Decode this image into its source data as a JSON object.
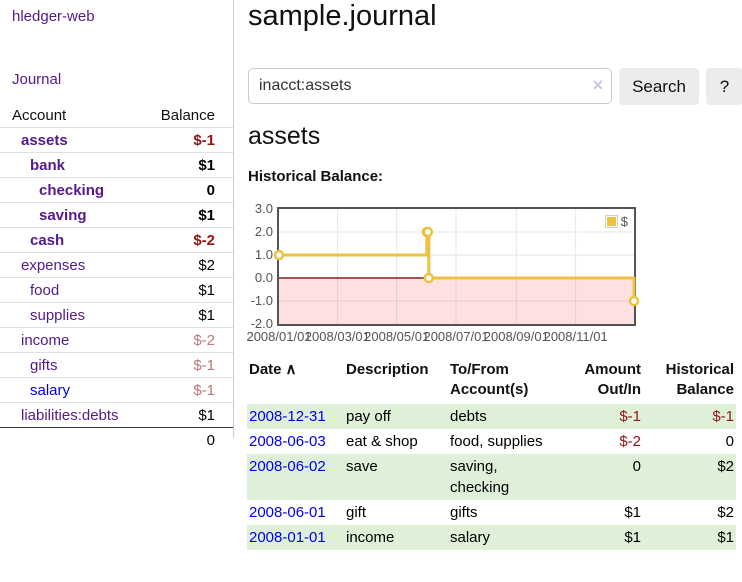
{
  "app": {
    "brand": "hledger-web",
    "nav_journal": "Journal"
  },
  "colors": {
    "link_purple": "#551a8b",
    "link_blue": "#0000ee",
    "negative": "#941414",
    "negative_dim": "#c17777",
    "row_green": "#dff0d8",
    "series_yellow": "#edc240",
    "axis_gray": "#545454",
    "negative_zone_line": "#8b1a1a"
  },
  "sidebar": {
    "header": {
      "account": "Account",
      "balance": "Balance"
    },
    "accounts": [
      {
        "name": "assets",
        "depth": 1,
        "balance": "$-1",
        "selected": true,
        "neg": "strong"
      },
      {
        "name": "bank",
        "depth": 2,
        "balance": "$1",
        "selected": true
      },
      {
        "name": "checking",
        "depth": 3,
        "balance": "0",
        "selected": true
      },
      {
        "name": "saving",
        "depth": 3,
        "balance": "$1",
        "selected": true
      },
      {
        "name": "cash",
        "depth": 2,
        "balance": "$-2",
        "selected": true,
        "neg": "strong"
      },
      {
        "name": "expenses",
        "depth": 1,
        "balance": "$2"
      },
      {
        "name": "food",
        "depth": 2,
        "balance": "$1"
      },
      {
        "name": "supplies",
        "depth": 2,
        "balance": "$1"
      },
      {
        "name": "income",
        "depth": 1,
        "balance": "$-2",
        "neg": "dim"
      },
      {
        "name": "gifts",
        "depth": 2,
        "balance": "$-1",
        "neg": "dim"
      },
      {
        "name": "salary",
        "depth": 2,
        "balance": "$-1",
        "neg": "dim",
        "link_color": "blue"
      },
      {
        "name": "liabilities:debts",
        "depth": 1,
        "balance": "$1"
      }
    ],
    "total": "0"
  },
  "header": {
    "title": "sample.journal"
  },
  "search": {
    "value": "inacct:assets",
    "clear_icon": "×",
    "button": "Search",
    "help_button": "?"
  },
  "account_page": {
    "heading": "assets",
    "chart_label": "Historical Balance:"
  },
  "chart_data": {
    "type": "line",
    "style": "step",
    "title": "Historical Balance:",
    "legend_position": "top-right",
    "xlim": [
      0,
      365
    ],
    "ylim": [
      -2,
      3
    ],
    "series": [
      {
        "name": "$",
        "color": "#edc240",
        "points": [
          {
            "date": "2008-01-01",
            "x": 0,
            "y": 1
          },
          {
            "date": "2008-06-01",
            "x": 152,
            "y": 2
          },
          {
            "date": "2008-06-02",
            "x": 153,
            "y": 2
          },
          {
            "date": "2008-06-03",
            "x": 154,
            "y": 0
          },
          {
            "date": "2008-12-31",
            "x": 365,
            "y": -1
          }
        ]
      }
    ],
    "x_ticks": [
      {
        "x": 0,
        "label": "2008/01/01"
      },
      {
        "x": 60,
        "label": "2008/03/01"
      },
      {
        "x": 121,
        "label": "2008/05/01"
      },
      {
        "x": 182,
        "label": "2008/07/01"
      },
      {
        "x": 244,
        "label": "2008/09/01"
      },
      {
        "x": 305,
        "label": "2008/11/01"
      }
    ],
    "y_ticks": [
      {
        "y": 3,
        "label": "3.0"
      },
      {
        "y": 2,
        "label": "2.0"
      },
      {
        "y": 1,
        "label": "1.0"
      },
      {
        "y": 0,
        "label": "0.0"
      },
      {
        "y": -1,
        "label": "-1.0"
      },
      {
        "y": -2,
        "label": "-2.0"
      }
    ]
  },
  "journal_table": {
    "headers": [
      {
        "label": "Date",
        "sort_icon": "∧"
      },
      {
        "label": "Description"
      },
      {
        "label": "To/From Account(s)"
      },
      {
        "label": "Amount Out/In",
        "align": "right"
      },
      {
        "label": "Historical Balance",
        "align": "right"
      }
    ],
    "rows": [
      {
        "date": "2008-12-31",
        "description": "pay off",
        "accounts": "debts",
        "amount": "$-1",
        "amount_neg": true,
        "balance": "$-1",
        "balance_neg": true
      },
      {
        "date": "2008-06-03",
        "description": "eat & shop",
        "accounts": "food, supplies",
        "amount": "$-2",
        "amount_neg": true,
        "balance": "0",
        "balance_neg": false
      },
      {
        "date": "2008-06-02",
        "description": "save",
        "accounts": "saving, checking",
        "amount": "0",
        "amount_neg": false,
        "balance": "$2",
        "balance_neg": false
      },
      {
        "date": "2008-06-01",
        "description": "gift",
        "accounts": "gifts",
        "amount": "$1",
        "amount_neg": false,
        "balance": "$2",
        "balance_neg": false
      },
      {
        "date": "2008-01-01",
        "description": "income",
        "accounts": "salary",
        "amount": "$1",
        "amount_neg": false,
        "balance": "$1",
        "balance_neg": false
      }
    ]
  }
}
